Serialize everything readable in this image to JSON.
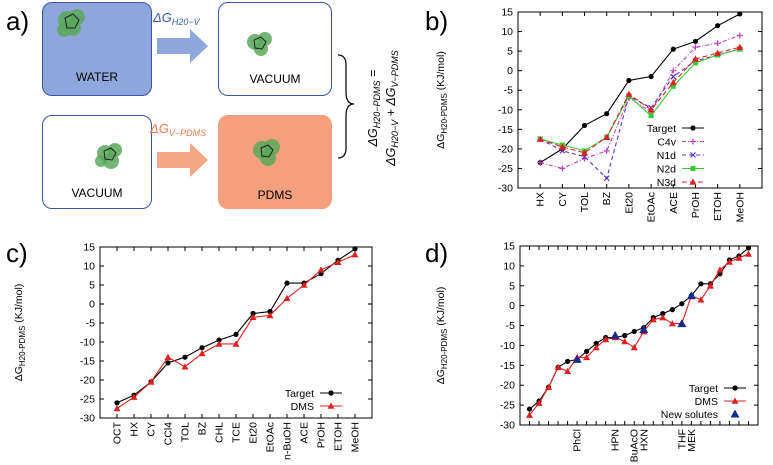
{
  "panel_labels": {
    "a": "a)",
    "b": "b)",
    "c": "c)",
    "d": "d)"
  },
  "schematic": {
    "box_water": "WATER",
    "box_vacuum_top": "VACUUM",
    "box_vacuum_bottom": "VACUUM",
    "box_pdms": "PDMS",
    "arrow_top_label": "ΔG",
    "arrow_top_sub": "H20−V",
    "arrow_bottom_label": "ΔG",
    "arrow_bottom_sub": "V−PDMS",
    "equation_line1": "ΔG",
    "equation_line1_sub": "H20−PDMS",
    "equation_line1_eq": " =",
    "equation_line2a": "ΔG",
    "equation_line2a_sub": "H20−V",
    "equation_line2b": " + ΔG",
    "equation_line2b_sub": "V−PDMS",
    "colors": {
      "water_fill": "#8fa6dc",
      "pdms_fill": "#f4a07e",
      "top_arrow": "#8fa8dc",
      "bottom_arrow": "#f4a584",
      "border": "#3b55a0"
    }
  },
  "chart_data": [
    {
      "id": "b",
      "type": "line",
      "ylabel": "ΔG",
      "ylabel_sub": "H20-PDMS",
      "ylabel_unit": " (KJ/mol)",
      "ylim": [
        -30,
        15
      ],
      "yticks": [
        -30,
        -25,
        -20,
        -15,
        -10,
        -5,
        0,
        5,
        10,
        15
      ],
      "categories": [
        "HX",
        "CY",
        "TOL",
        "BZ",
        "Et20",
        "EtOAc",
        "ACE",
        "PrOH",
        "ETOH",
        "MeOH"
      ],
      "legend_position": "right-middle",
      "series": [
        {
          "name": "Target",
          "color": "#000000",
          "marker": "circle",
          "dash": "",
          "values": [
            -23.5,
            -20,
            -14,
            -11,
            -2.5,
            -1.5,
            5.5,
            7.5,
            11.5,
            14.5
          ]
        },
        {
          "name": "C4v",
          "color": "#c040c0",
          "marker": "plus",
          "dash": "4,2,1,2",
          "values": [
            -23.5,
            -25,
            -22.5,
            -20.5,
            -7,
            -10.5,
            0,
            6,
            7,
            9
          ]
        },
        {
          "name": "N1d",
          "color": "#6030c0",
          "marker": "x",
          "dash": "4,3",
          "values": [
            -17.5,
            -20.5,
            -22,
            -27.5,
            -6.5,
            -9.5,
            -1.5,
            2.5,
            4,
            5.5
          ]
        },
        {
          "name": "N2d",
          "color": "#33cc33",
          "marker": "square",
          "dash": "",
          "values": [
            -17.5,
            -19,
            -20.5,
            -17,
            -6.5,
            -11.5,
            -4,
            2,
            4,
            5.5
          ]
        },
        {
          "name": "N3d",
          "color": "#e02020",
          "marker": "triangle",
          "dash": "5,3",
          "values": [
            -17.5,
            -19.5,
            -21,
            -17,
            -6,
            -10,
            -3,
            3,
            4.5,
            6
          ]
        }
      ]
    },
    {
      "id": "c",
      "type": "line",
      "ylabel": "ΔG",
      "ylabel_sub": "H20-PDMS",
      "ylabel_unit": " (KJ/mol)",
      "ylim": [
        -30,
        15
      ],
      "yticks": [
        -30,
        -25,
        -20,
        -15,
        -10,
        -5,
        0,
        5,
        10,
        15
      ],
      "categories": [
        "OCT",
        "HX",
        "CY",
        "CCl4",
        "TOL",
        "BZ",
        "CHL",
        "TCE",
        "Et20",
        "EtOAc",
        "n-BuOH",
        "ACE",
        "PrOH",
        "ETOH",
        "MeOH"
      ],
      "legend_position": "bottom-right",
      "series": [
        {
          "name": "Target",
          "color": "#000000",
          "marker": "circle",
          "values": [
            -26,
            -24,
            -20.5,
            -15.5,
            -14,
            -11.5,
            -9.5,
            -8,
            -2.5,
            -2,
            5.5,
            5.5,
            8,
            11.5,
            14.5
          ]
        },
        {
          "name": "DMS",
          "color": "#e02020",
          "marker": "triangle",
          "values": [
            -27.5,
            -24.5,
            -20.5,
            -14,
            -16.5,
            -13,
            -10.5,
            -10.5,
            -3.5,
            -3,
            1.5,
            5,
            9,
            11,
            13
          ]
        }
      ]
    },
    {
      "id": "d",
      "type": "line",
      "ylabel": "ΔG",
      "ylabel_sub": "H20-PDMS",
      "ylabel_unit": " (KJ/mol)",
      "ylim": [
        -30,
        15
      ],
      "yticks": [
        -30,
        -25,
        -20,
        -15,
        -10,
        -5,
        0,
        5,
        10,
        15
      ],
      "categories": [
        "",
        "",
        "",
        "",
        "",
        "PhCl",
        "",
        "",
        "",
        "HPN",
        "",
        "BuAcO",
        "HXN",
        "",
        "",
        "",
        "THF",
        "MEK",
        "",
        "",
        "",
        "",
        "",
        ""
      ],
      "legend_position": "bottom-right",
      "series": [
        {
          "name": "Target",
          "color": "#000000",
          "marker": "circle",
          "line": true,
          "values": [
            -26,
            -24,
            -20.5,
            -15.5,
            -14,
            -13.5,
            -11.5,
            -9.5,
            -8,
            -8,
            -7.5,
            -6.5,
            -5.5,
            -3,
            -2,
            -1,
            0.5,
            2.5,
            5.5,
            5.5,
            8,
            11.5,
            12.5,
            14.5
          ]
        },
        {
          "name": "DMS",
          "color": "#e02020",
          "marker": "triangle",
          "line": true,
          "values": [
            -27.5,
            -24.5,
            -20.5,
            -15.5,
            -16.5,
            -13,
            -13,
            -10.5,
            -8.5,
            -8,
            -9,
            -10.5,
            -6.5,
            -3.5,
            -3,
            -4.5,
            -4.5,
            2.5,
            1.5,
            5,
            9,
            11,
            12,
            13
          ]
        },
        {
          "name": "New solutes",
          "color": "#1a2a8a",
          "marker": "triangle-blue",
          "line": false,
          "points": [
            [
              5,
              -13.5
            ],
            [
              9,
              -7.5
            ],
            [
              12,
              -6
            ],
            [
              16,
              -4.5
            ],
            [
              17,
              2.5
            ]
          ]
        }
      ]
    }
  ]
}
